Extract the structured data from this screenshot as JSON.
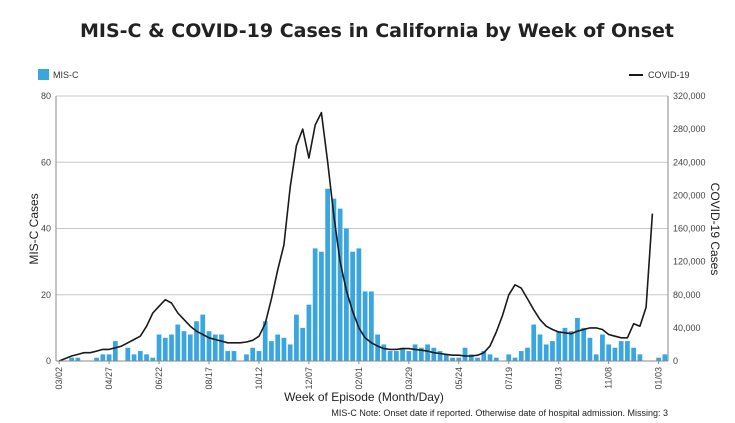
{
  "chart_data": {
    "type": "bar+line",
    "title": "MIS-C & COVID-19 Cases in California by Week of Onset",
    "xlabel": "Week of Episode (Month/Day)",
    "ylabel_left": "MIS-C Cases",
    "ylabel_right": "COVID-19 Cases",
    "note": "MIS-C Note: Onset date if reported. Otherwise date of hospital admission. Missing: 3",
    "x_tick_labels": [
      "03/02",
      "04/27",
      "06/22",
      "08/17",
      "10/12",
      "12/07",
      "02/01",
      "03/29",
      "05/24",
      "07/19",
      "09/13",
      "11/08",
      "01/03"
    ],
    "x_tick_week_index": [
      0,
      8,
      16,
      24,
      32,
      40,
      48,
      56,
      64,
      72,
      80,
      88,
      96
    ],
    "y_left_ticks": [
      "0",
      "20",
      "40",
      "60",
      "80"
    ],
    "y_left_range": [
      0,
      80
    ],
    "y_right_ticks": [
      "0",
      "40,000",
      "80,000",
      "120,000",
      "160,000",
      "200,000",
      "240,000",
      "280,000",
      "320,000"
    ],
    "y_right_range": [
      0,
      320000
    ],
    "grid": true,
    "legend_placement": "top",
    "colors": {
      "misc": "#3aa6e0",
      "covid": "#1a1a1a",
      "grid": "#c8c8c8"
    },
    "series": [
      {
        "name": "MIS-C",
        "type": "bar",
        "values": [
          0,
          0,
          1,
          1,
          0,
          0,
          1,
          2,
          2,
          6,
          0,
          4,
          2,
          3,
          2,
          1,
          8,
          7,
          8,
          11,
          9,
          8,
          12,
          14,
          9,
          8,
          8,
          3,
          3,
          0,
          2,
          4,
          3,
          12,
          6,
          8,
          7,
          5,
          14,
          10,
          17,
          34,
          33,
          52,
          49,
          46,
          40,
          33,
          34,
          21,
          21,
          8,
          5,
          3,
          3,
          4,
          3,
          5,
          4,
          5,
          4,
          3,
          2,
          1,
          1,
          4,
          2,
          1,
          3,
          2,
          1,
          0,
          2,
          1,
          3,
          4,
          11,
          8,
          5,
          6,
          9,
          10,
          9,
          13,
          10,
          7,
          2,
          8,
          5,
          4,
          6,
          6,
          4,
          2,
          0,
          0,
          1,
          2
        ]
      },
      {
        "name": "COVID-19",
        "type": "line",
        "values": [
          0,
          3000,
          6000,
          8000,
          10000,
          10000,
          12000,
          14000,
          14000,
          16000,
          18000,
          22000,
          26000,
          30000,
          42000,
          58000,
          66000,
          74000,
          70000,
          58000,
          50000,
          42000,
          36000,
          32000,
          28000,
          26000,
          24000,
          22000,
          22000,
          22000,
          23000,
          25000,
          30000,
          45000,
          75000,
          110000,
          140000,
          210000,
          260000,
          280000,
          245000,
          285000,
          300000,
          240000,
          175000,
          120000,
          85000,
          60000,
          40000,
          28000,
          22000,
          18000,
          15000,
          14000,
          14000,
          15000,
          15000,
          14000,
          13000,
          12000,
          10000,
          9000,
          8000,
          7000,
          7000,
          6000,
          6000,
          7000,
          10000,
          18000,
          35000,
          55000,
          80000,
          92000,
          88000,
          75000,
          62000,
          50000,
          42000,
          38000,
          35000,
          34000,
          33000,
          36000,
          38000,
          40000,
          40000,
          38000,
          32000,
          30000,
          28000,
          28000,
          45000,
          42000,
          65000,
          178000
        ]
      }
    ]
  }
}
